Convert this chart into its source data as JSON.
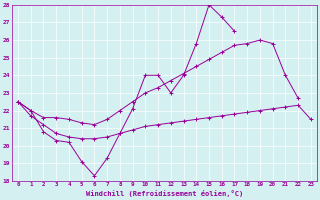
{
  "xlabel": "Windchill (Refroidissement éolien,°C)",
  "x": [
    0,
    1,
    2,
    3,
    4,
    5,
    6,
    7,
    8,
    9,
    10,
    11,
    12,
    13,
    14,
    15,
    16,
    17,
    18,
    19,
    20,
    21,
    22,
    23
  ],
  "line1": [
    22.5,
    22.0,
    20.8,
    20.3,
    20.2,
    19.1,
    18.3,
    19.3,
    20.7,
    22.1,
    24.0,
    24.0,
    23.0,
    24.0,
    25.8,
    28.0,
    27.3,
    26.5,
    null,
    null,
    null,
    null,
    null,
    null
  ],
  "line2": [
    22.5,
    22.0,
    21.6,
    21.6,
    21.5,
    21.3,
    21.2,
    21.5,
    22.0,
    22.5,
    23.0,
    23.3,
    23.7,
    24.1,
    24.5,
    24.9,
    25.3,
    25.7,
    25.8,
    26.0,
    25.8,
    24.0,
    22.7,
    null
  ],
  "line3": [
    22.5,
    21.7,
    21.2,
    20.7,
    20.5,
    20.4,
    20.4,
    20.5,
    20.7,
    20.9,
    21.1,
    21.2,
    21.3,
    21.4,
    21.5,
    21.6,
    21.7,
    21.8,
    21.9,
    22.0,
    22.1,
    22.2,
    22.3,
    21.5
  ],
  "color": "#990099",
  "bg_color": "#d4f0f0",
  "ylim": [
    18,
    28
  ],
  "xlim": [
    -0.5,
    23.5
  ],
  "yticks": [
    18,
    19,
    20,
    21,
    22,
    23,
    24,
    25,
    26,
    27,
    28
  ],
  "xticks": [
    0,
    1,
    2,
    3,
    4,
    5,
    6,
    7,
    8,
    9,
    10,
    11,
    12,
    13,
    14,
    15,
    16,
    17,
    18,
    19,
    20,
    21,
    22,
    23
  ],
  "grid_color": "#ffffff",
  "marker": "+"
}
